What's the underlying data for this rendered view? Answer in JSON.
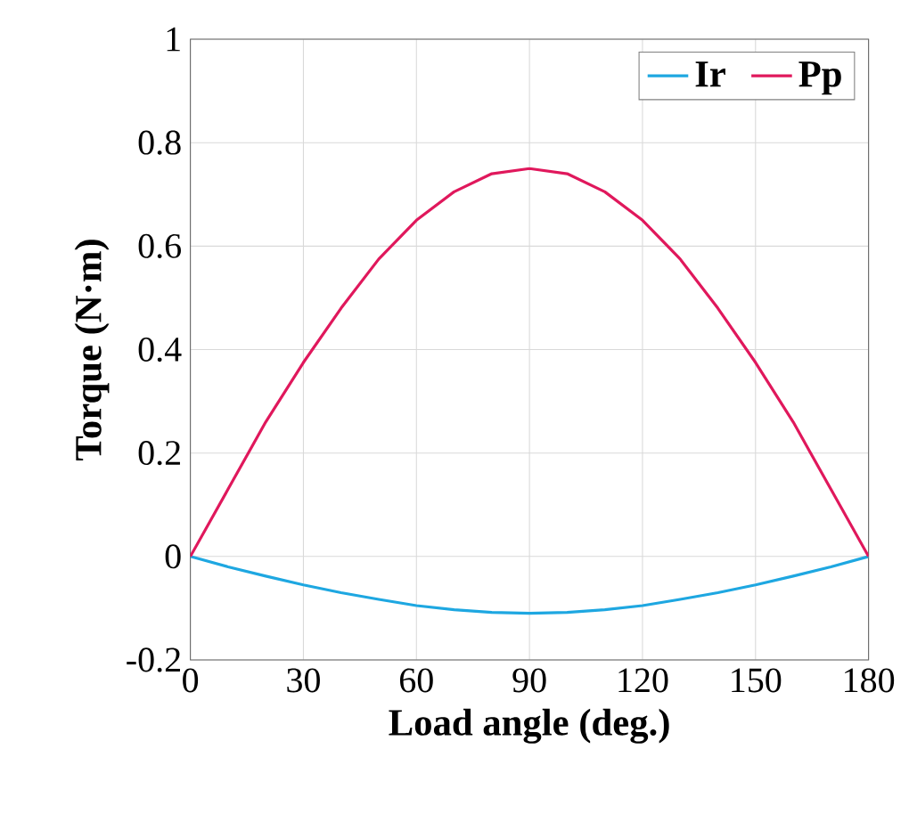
{
  "chart_data": {
    "type": "line",
    "xlabel": "Load angle (deg.)",
    "ylabel": "Torque (N·m)",
    "x": [
      0,
      10,
      20,
      30,
      40,
      50,
      60,
      70,
      80,
      90,
      100,
      110,
      120,
      130,
      140,
      150,
      160,
      170,
      180
    ],
    "series": [
      {
        "name": "Ir",
        "color": "#1ea7e1",
        "values": [
          0,
          -0.02,
          -0.038,
          -0.055,
          -0.07,
          -0.083,
          -0.095,
          -0.103,
          -0.108,
          -0.11,
          -0.108,
          -0.103,
          -0.095,
          -0.083,
          -0.07,
          -0.055,
          -0.038,
          -0.02,
          0
        ]
      },
      {
        "name": "Pp",
        "color": "#e0185c",
        "values": [
          0,
          0.13,
          0.26,
          0.375,
          0.48,
          0.575,
          0.65,
          0.705,
          0.74,
          0.75,
          0.74,
          0.705,
          0.65,
          0.575,
          0.48,
          0.375,
          0.26,
          0.13,
          0
        ]
      }
    ],
    "xlim": [
      0,
      180
    ],
    "xticks": [
      0,
      30,
      60,
      90,
      120,
      150,
      180
    ],
    "ylim": [
      -0.2,
      1
    ],
    "yticks": [
      -0.2,
      0,
      0.2,
      0.4,
      0.6,
      0.8,
      1
    ],
    "grid": true,
    "legend": "top right",
    "line_style": "solid"
  }
}
